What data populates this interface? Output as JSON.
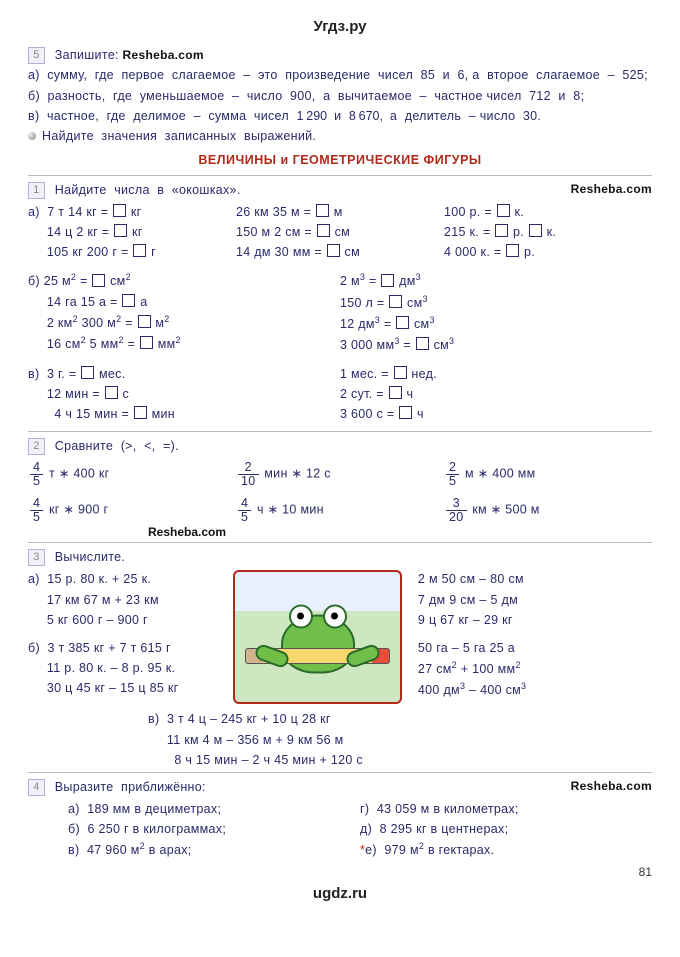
{
  "watermark_top": "Угдз.ру",
  "watermark_bottom": "ugdz.ru",
  "resheba": "Resheba.com",
  "page_number": "81",
  "task5": {
    "num": "5",
    "intro": "Запишите:",
    "a": "а)  сумму,  где  первое  слагаемое  –  это  произведение  чисел  85  и  6, а  второе  слагаемое  –  525;",
    "b": "б)  разность,  где  уменьшаемое  –  число  900,  а  вычитаемое  –  частное чисел  712  и  8;",
    "v": "в)  частное,  где  делимое  –  сумма  чисел  1 290  и  8 670,  а  делитель  – число  30.",
    "instr": "Найдите  значения  записанных  выражений."
  },
  "section_title": "ВЕЛИЧИНЫ  и  ГЕОМЕТРИЧЕСКИЕ  ФИГУРЫ",
  "task1": {
    "num": "1",
    "title": "Найдите  числа  в  «окошках».",
    "a": {
      "c1": [
        "а)  7 т 14 кг = □ кг",
        "     14 ц 2 кг = □ кг",
        "     105 кг 200 г = □ г"
      ],
      "c2": [
        "26 км 35 м = □ м",
        "150 м 2 см = □ см",
        "14 дм 30 мм = □ см"
      ],
      "c3": [
        "100 р. = □ к.",
        "215 к. = □ р. □ к.",
        "4 000 к. = □ р."
      ]
    },
    "b": {
      "c1": [
        "б) 25 м² = □ см²",
        "     14 га 15 а = □ а",
        "     2 км² 300 м² = □ м²",
        "     16 см² 5 мм² = □ мм²"
      ],
      "c2": [
        "2 м³ = □ дм³",
        "150 л = □ см³",
        "12 дм³ = □ см³",
        "3 000 мм³ = □ см³"
      ]
    },
    "v": {
      "c1": [
        "в)  3 г. = □ мес.",
        "     12 мин = □ с",
        "       4 ч 15 мин = □ мин"
      ],
      "c2": [
        "1 мес. = □ нед.",
        "2 сут. = □ ч",
        "3 600 с = □ ч"
      ]
    }
  },
  "task2": {
    "num": "2",
    "title": "Сравните  (>,  <,  =).",
    "rows": {
      "r1": {
        "f1n": "4",
        "f1d": "5",
        "t1": " т ∗ 400  кг",
        "f2n": "2",
        "f2d": "10",
        "t2": " мин ∗ 12  с",
        "f3n": "2",
        "f3d": "5",
        "t3": " м ∗ 400  мм"
      },
      "r2": {
        "f1n": "4",
        "f1d": "5",
        "t1": " кг ∗ 900  г",
        "f2n": "4",
        "f2d": "5",
        "t2": " ч ∗ 10  мин",
        "f3n": "3",
        "f3d": "20",
        "t3": " км ∗ 500  м"
      }
    }
  },
  "task3": {
    "num": "3",
    "title": "Вычислите.",
    "a": {
      "c1": [
        "а)  15 р. 80 к. + 25 к.",
        "     17 км 67 м + 23 км",
        "     5 кг 600 г – 900 г"
      ],
      "c3": [
        "2 м 50 см – 80 см",
        "7 дм 9 см – 5 дм",
        "9 ц 67 кг – 29 кг"
      ]
    },
    "b": {
      "c1": [
        "б)  3 т 385 кг +  7 т 615 г",
        "     11 р. 80 к. – 8 р. 95 к.",
        "     30 ц 45 кг – 15 ц 85 кг"
      ],
      "c3": [
        "50 га – 5 га 25 а",
        "27 см² + 100 мм²",
        "400 дм³ – 400 см³"
      ]
    },
    "v": [
      "в)  3 т 4 ц  –  245 кг  +  10 ц 28  кг",
      "     11 км 4 м  –  356 м  +  9 км  56 м",
      "       8 ч 15 мин  –  2 ч 45 мин  +  120 с"
    ]
  },
  "task4": {
    "num": "4",
    "title": "Выразите  приближённо:",
    "c1": [
      "а)  189 мм в дециметрах;",
      "б)  6 250 г в килограммах;",
      "в)  47 960 м² в арах;"
    ],
    "c2": [
      "г)  43 059 м в километрах;",
      "д)  8 295 кг в центнерах;"
    ],
    "c2_star": "е)  979 м² в гектарах."
  }
}
